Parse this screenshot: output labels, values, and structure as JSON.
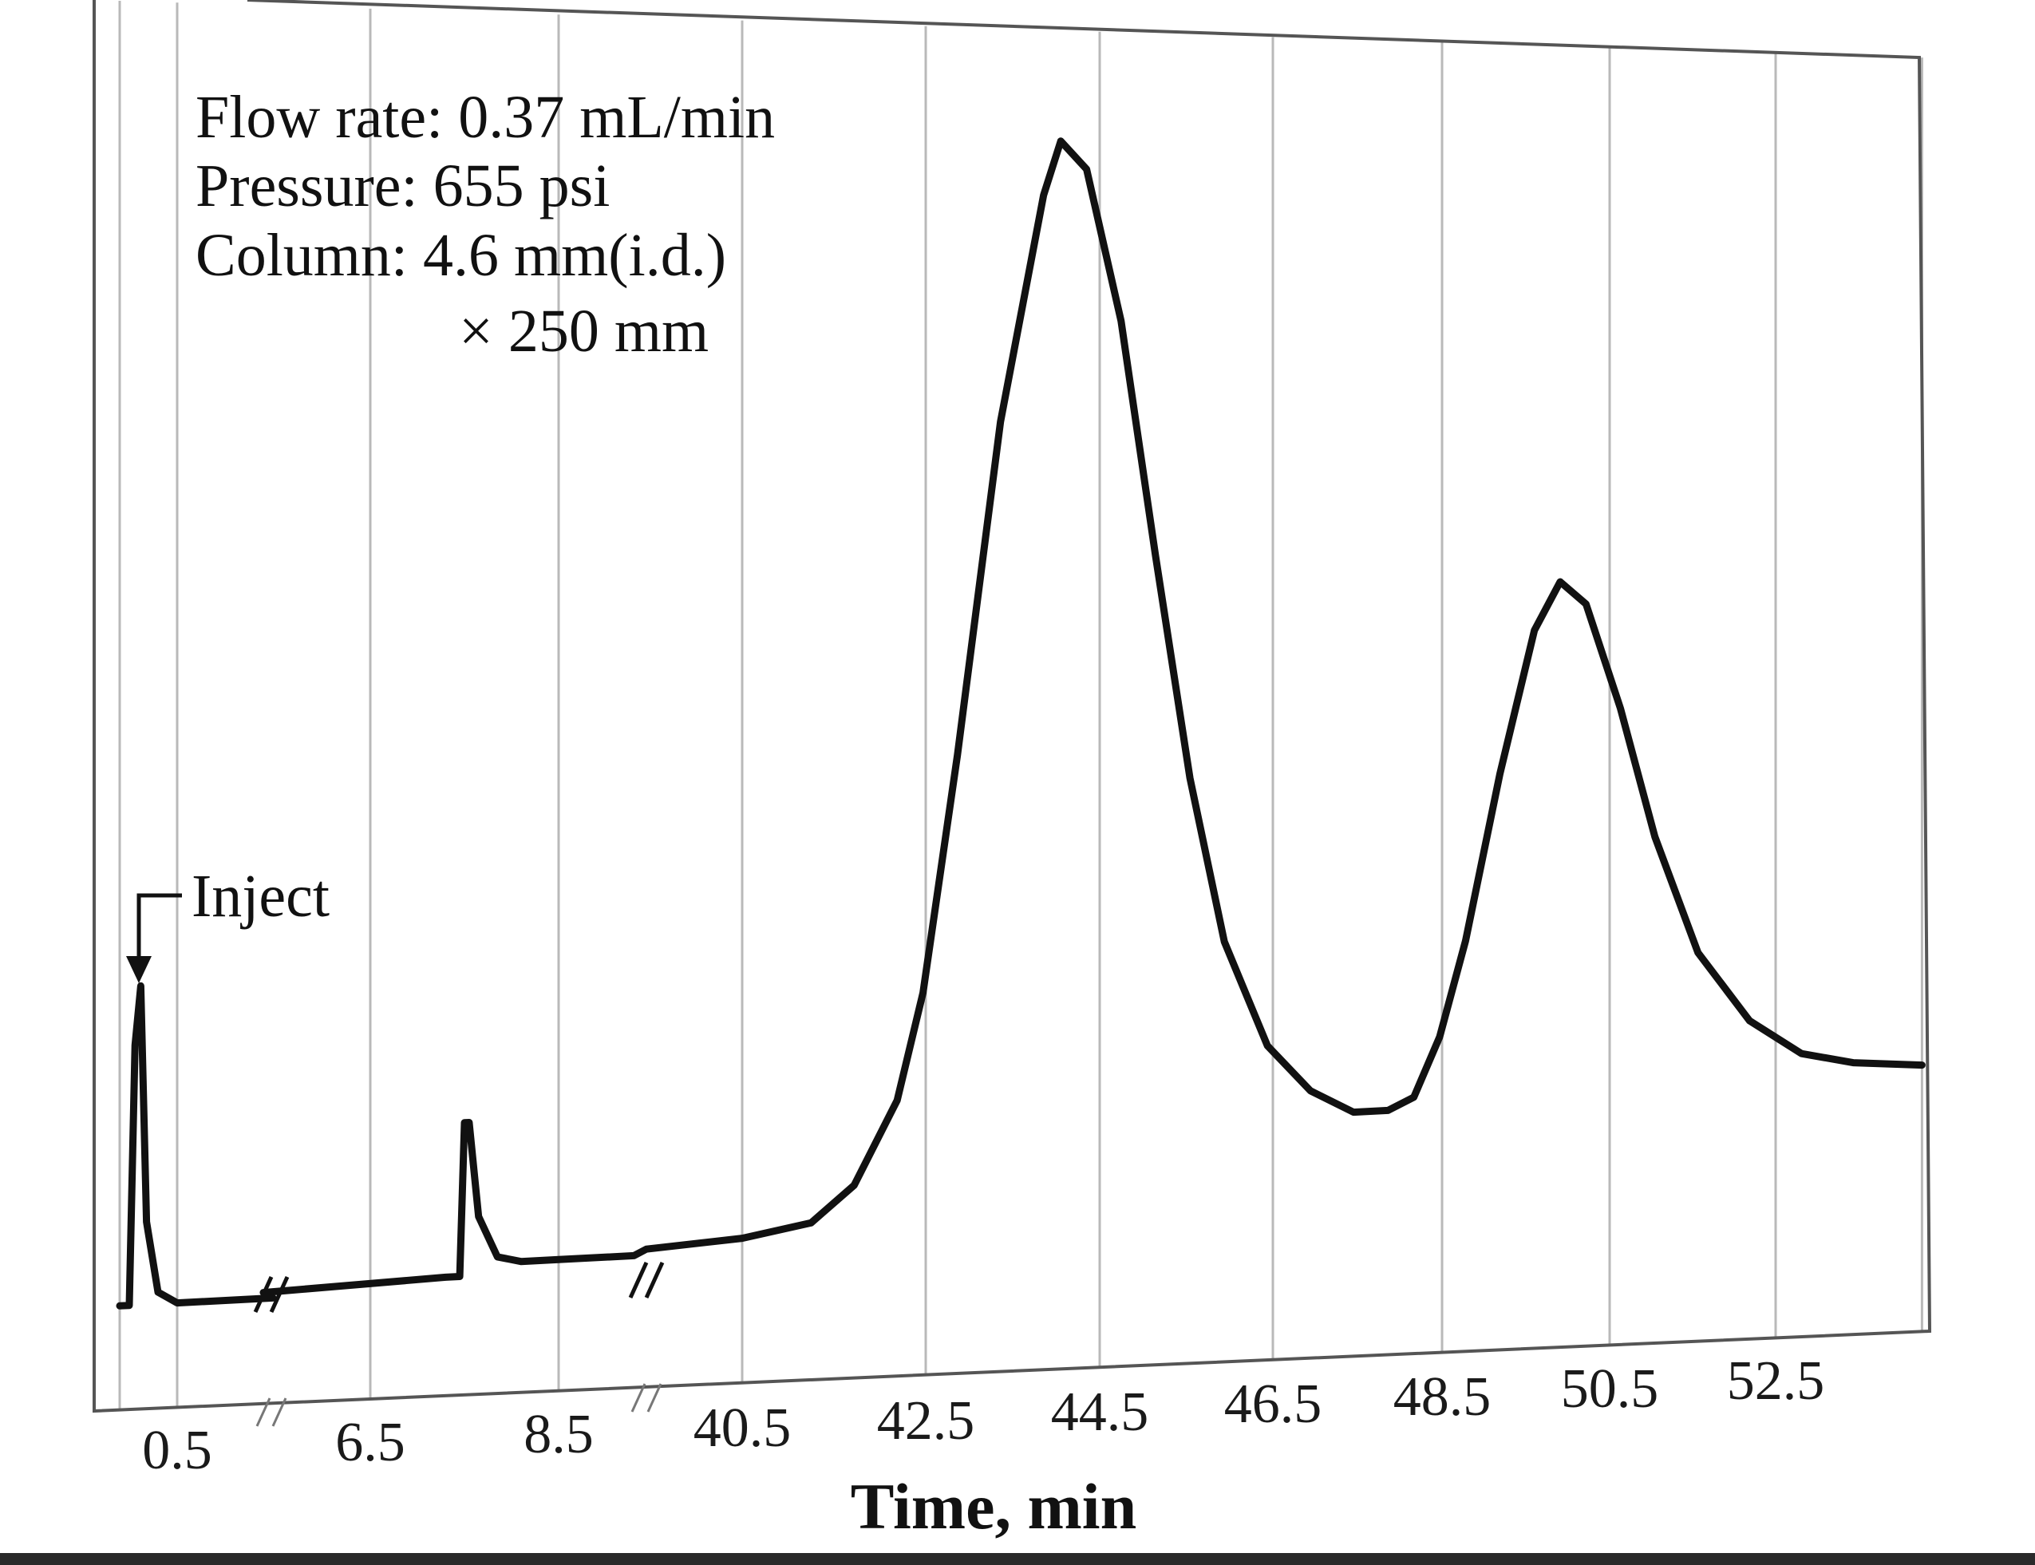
{
  "chart_data": {
    "type": "line",
    "title": "",
    "xlabel": "Time, min",
    "ylabel": "",
    "x_ticks": [
      "0.5",
      "6.5",
      "8.5",
      "40.5",
      "42.5",
      "44.5",
      "46.5",
      "48.5",
      "50.5",
      "52.5"
    ],
    "axis_breaks": [
      {
        "between": [
          "0.5",
          "6.5"
        ]
      },
      {
        "between": [
          "8.5",
          "40.5"
        ]
      }
    ],
    "grid": true,
    "conditions": [
      "Flow rate: 0.37 mL/min",
      "Pressure: 655 psi",
      "Column: 4.6 mm(i.d.)",
      "× 250 mm"
    ],
    "annotations": [
      {
        "text": "Inject",
        "x": 0.3
      }
    ],
    "series": [
      {
        "points": [
          {
            "x": 0.2,
            "y": 0.03
          },
          {
            "x": 0.25,
            "y": 0.03
          },
          {
            "x": 0.28,
            "y": 0.25
          },
          {
            "x": 0.31,
            "y": 0.3
          },
          {
            "x": 0.34,
            "y": 0.1
          },
          {
            "x": 0.4,
            "y": 0.04
          },
          {
            "x": 0.5,
            "y": 0.03
          },
          {
            "x": 1.0,
            "y": 0.03
          },
          {
            "x": 5.5,
            "y": 0.035
          },
          {
            "x": 7.3,
            "y": 0.04
          },
          {
            "x": 7.45,
            "y": 0.04
          },
          {
            "x": 7.5,
            "y": 0.17
          },
          {
            "x": 7.55,
            "y": 0.17
          },
          {
            "x": 7.65,
            "y": 0.09
          },
          {
            "x": 7.85,
            "y": 0.055
          },
          {
            "x": 8.1,
            "y": 0.05
          },
          {
            "x": 8.5,
            "y": 0.05
          },
          {
            "x": 9.3,
            "y": 0.05
          },
          {
            "x": 39.3,
            "y": 0.055
          },
          {
            "x": 40.5,
            "y": 0.06
          },
          {
            "x": 41.3,
            "y": 0.07
          },
          {
            "x": 41.8,
            "y": 0.1
          },
          {
            "x": 42.3,
            "y": 0.17
          },
          {
            "x": 42.6,
            "y": 0.26
          },
          {
            "x": 43.0,
            "y": 0.46
          },
          {
            "x": 43.5,
            "y": 0.74
          },
          {
            "x": 44.0,
            "y": 0.93
          },
          {
            "x": 44.2,
            "y": 0.975
          },
          {
            "x": 44.5,
            "y": 0.95
          },
          {
            "x": 44.9,
            "y": 0.82
          },
          {
            "x": 45.3,
            "y": 0.62
          },
          {
            "x": 45.7,
            "y": 0.43
          },
          {
            "x": 46.1,
            "y": 0.29
          },
          {
            "x": 46.6,
            "y": 0.2
          },
          {
            "x": 47.1,
            "y": 0.16
          },
          {
            "x": 47.6,
            "y": 0.14
          },
          {
            "x": 48.0,
            "y": 0.14
          },
          {
            "x": 48.3,
            "y": 0.15
          },
          {
            "x": 48.6,
            "y": 0.2
          },
          {
            "x": 48.9,
            "y": 0.28
          },
          {
            "x": 49.3,
            "y": 0.42
          },
          {
            "x": 49.7,
            "y": 0.54
          },
          {
            "x": 50.0,
            "y": 0.58
          },
          {
            "x": 50.3,
            "y": 0.56
          },
          {
            "x": 50.7,
            "y": 0.47
          },
          {
            "x": 51.1,
            "y": 0.36
          },
          {
            "x": 51.6,
            "y": 0.26
          },
          {
            "x": 52.2,
            "y": 0.2
          },
          {
            "x": 52.8,
            "y": 0.17
          },
          {
            "x": 53.4,
            "y": 0.16
          },
          {
            "x": 54.2,
            "y": 0.155
          }
        ]
      }
    ]
  }
}
